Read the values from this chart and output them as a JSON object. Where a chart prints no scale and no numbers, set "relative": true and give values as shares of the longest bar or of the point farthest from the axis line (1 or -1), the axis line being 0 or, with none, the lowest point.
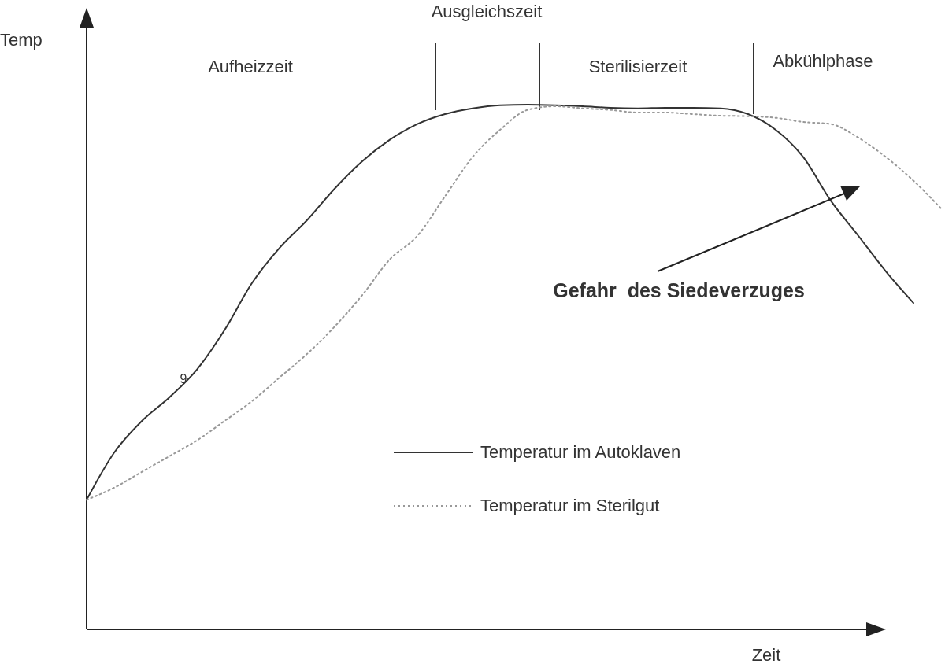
{
  "chart_data": {
    "type": "line",
    "relative": true,
    "xlabel": "Zeit",
    "ylabel": "Temp",
    "categories": [
      null,
      null,
      null,
      null,
      null,
      null,
      null,
      null,
      null,
      null,
      null,
      null,
      null,
      null,
      null,
      null,
      null,
      null,
      null,
      null,
      null,
      null,
      null,
      null,
      null,
      null,
      null,
      null,
      null,
      null,
      null,
      null
    ],
    "series": [
      {
        "name": "Temperatur im Autoklaven",
        "color": "#333333",
        "line_style": "solid",
        "values": [
          0.247,
          0.337,
          0.397,
          0.442,
          0.495,
          0.57,
          0.66,
          0.727,
          0.78,
          0.84,
          0.892,
          0.933,
          0.963,
          0.982,
          0.993,
          0.999,
          1,
          0.999,
          0.997,
          0.994,
          0.993,
          0.994,
          0.994,
          0.993,
          0.982,
          0.952,
          0.9,
          0.817,
          0.75,
          0.682,
          0.622,
          null
        ]
      },
      {
        "name": "Temperatur im Sterilgut",
        "color": "#999999",
        "line_style": "dotted",
        "values": [
          0.247,
          0.27,
          0.3,
          0.33,
          0.36,
          0.397,
          0.435,
          0.48,
          0.525,
          0.577,
          0.637,
          0.705,
          0.75,
          0.825,
          0.9,
          0.952,
          0.99,
          0.997,
          0.993,
          0.99,
          0.985,
          0.985,
          0.982,
          0.979,
          0.978,
          0.975,
          0.967,
          0.963,
          0.937,
          0.9,
          0.855,
          0.802
        ]
      }
    ],
    "legend": "bottom",
    "grid": false,
    "marker": "none",
    "annotations": [
      "Aufheizzeit",
      "Ausgleichszeit",
      "Sterilisierzeit",
      "Abkühlphase",
      "Gefahr  des Siedeverzuges",
      "9"
    ]
  }
}
